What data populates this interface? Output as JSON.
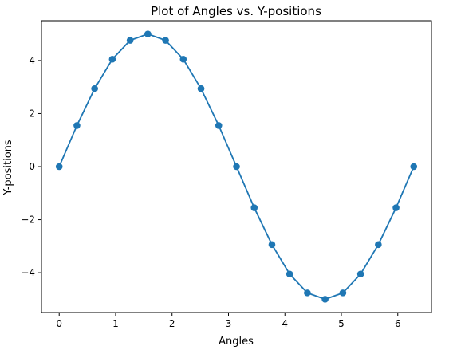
{
  "chart_data": {
    "type": "line",
    "title": "Plot of Angles vs. Y-positions",
    "xlabel": "Angles",
    "ylabel": "Y-positions",
    "xlim": [
      -0.314,
      6.597
    ],
    "ylim": [
      -5.5,
      5.5
    ],
    "xticks": [
      "0",
      "1",
      "2",
      "3",
      "4",
      "5",
      "6"
    ],
    "yticks": [
      "−4",
      "−2",
      "0",
      "2",
      "4"
    ],
    "grid": false,
    "legend": "none",
    "series": [
      {
        "color": "#1f77b4",
        "marker": "circle",
        "x": [
          0,
          0.314,
          0.628,
          0.942,
          1.257,
          1.571,
          1.885,
          2.199,
          2.513,
          2.827,
          3.142,
          3.456,
          3.77,
          4.084,
          4.398,
          4.712,
          5.027,
          5.341,
          5.655,
          5.969,
          6.283
        ],
        "y": [
          0,
          1.55,
          2.94,
          4.05,
          4.76,
          5.0,
          4.76,
          4.05,
          2.94,
          1.55,
          0,
          -1.55,
          -2.94,
          -4.05,
          -4.76,
          -5.0,
          -4.76,
          -4.05,
          -2.94,
          -1.55,
          0
        ]
      }
    ]
  }
}
